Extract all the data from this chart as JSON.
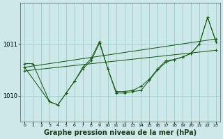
{
  "bg_color": "#cce8e8",
  "grid_color": "#99cccc",
  "line_color": "#1a5c1a",
  "xlabel": "Graphe pression niveau de la mer (hPa)",
  "xlabel_fontsize": 7,
  "xlim": [
    -0.5,
    23.5
  ],
  "ylim": [
    1009.5,
    1011.8
  ],
  "yticks": [
    1010,
    1011
  ],
  "xticks": [
    0,
    1,
    2,
    3,
    4,
    5,
    6,
    7,
    8,
    9,
    10,
    11,
    12,
    13,
    14,
    15,
    16,
    17,
    18,
    19,
    20,
    21,
    22,
    23
  ],
  "series": [
    {
      "x": [
        0,
        1,
        3,
        4,
        5,
        6,
        7,
        8,
        9,
        10,
        11,
        12,
        13,
        14,
        15,
        16,
        17,
        18,
        19,
        20,
        21,
        22,
        23
      ],
      "y": [
        1010.62,
        1010.62,
        1009.88,
        1009.82,
        1010.05,
        1010.28,
        1010.52,
        1010.68,
        1011.02,
        1010.52,
        1010.08,
        1010.08,
        1010.1,
        1010.18,
        1010.32,
        1010.52,
        1010.68,
        1010.7,
        1010.75,
        1010.82,
        1011.0,
        1011.52,
        1011.05
      ]
    },
    {
      "x": [
        0,
        23
      ],
      "y": [
        1010.55,
        1011.1
      ]
    },
    {
      "x": [
        0,
        23
      ],
      "y": [
        1010.48,
        1010.88
      ]
    },
    {
      "x": [
        0,
        3,
        4,
        5,
        6,
        7,
        8,
        9,
        10,
        11,
        12,
        13,
        14,
        15,
        16,
        17,
        18,
        19,
        20,
        21,
        22,
        23
      ],
      "y": [
        1010.55,
        1009.88,
        1009.82,
        1010.05,
        1010.28,
        1010.55,
        1010.72,
        1011.05,
        1010.52,
        1010.05,
        1010.05,
        1010.08,
        1010.1,
        1010.3,
        1010.5,
        1010.65,
        1010.7,
        1010.75,
        1010.82,
        1011.0,
        1011.52,
        1011.05
      ]
    }
  ]
}
